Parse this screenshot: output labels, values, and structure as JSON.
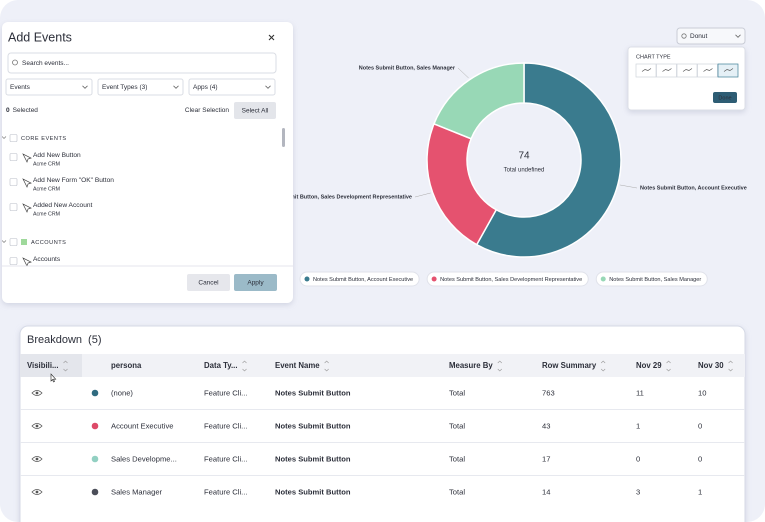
{
  "add_events": {
    "title": "Add Events",
    "search_placeholder": "Search events...",
    "filters": [
      "Events",
      "Event Types (3)",
      "Apps (4)"
    ],
    "selected_count": 0,
    "selected_label": "Selected",
    "clear_selection": "Clear Selection",
    "select_all": "Select All",
    "groups": [
      {
        "name": "CORE EVENTS",
        "items": [
          {
            "name": "Add New Button",
            "app": "Acme CRM"
          },
          {
            "name": "Add New Form \"OK\" Button",
            "app": "Acme CRM"
          },
          {
            "name": "Added New Account",
            "app": "Acme CRM"
          }
        ]
      },
      {
        "name": "ACCOUNTS",
        "items": [
          {
            "name": "Accounts"
          }
        ]
      }
    ],
    "cancel": "Cancel",
    "apply": "Apply"
  },
  "chart_selector": {
    "value": "Donut",
    "panel_title": "CHART TYPE",
    "done": "Done"
  },
  "donut_chart": {
    "type": "donut",
    "center_value": 74,
    "center_label": "Total undefined",
    "series": [
      {
        "name": "Notes Submit Button, Account Executive",
        "color": "#3a7b8e",
        "value": 43
      },
      {
        "name": "Notes Submit Button, Sales Development Representative",
        "color": "#e5526f",
        "value": 17
      },
      {
        "name": "Notes Submit Button, Sales Manager",
        "color": "#98d8b6",
        "value": 14
      }
    ]
  },
  "breakdown": {
    "title": "Breakdown",
    "count_label": "(5)",
    "columns": [
      "Visibili...",
      "persona",
      "Data Ty...",
      "Event Name",
      "Measure By",
      "Row Summary",
      "Nov 29",
      "Nov 30"
    ],
    "rows": [
      {
        "color": "#2f6b80",
        "cells": [
          "(none)",
          "Feature Cli...",
          "Notes Submit Button",
          "Total",
          763,
          11,
          10
        ]
      },
      {
        "color": "#dd4a68",
        "cells": [
          "Account Executive",
          "Feature Cli...",
          "Notes Submit Button",
          "Total",
          43,
          1,
          0
        ]
      },
      {
        "color": "#92d0c2",
        "cells": [
          "Sales Developme...",
          "Feature Cli...",
          "Notes Submit Button",
          "Total",
          17,
          0,
          0
        ]
      },
      {
        "color": "#4b4e59",
        "cells": [
          "Sales Manager",
          "Feature Cli...",
          "Notes Submit Button",
          "Total",
          14,
          3,
          1
        ]
      }
    ]
  }
}
